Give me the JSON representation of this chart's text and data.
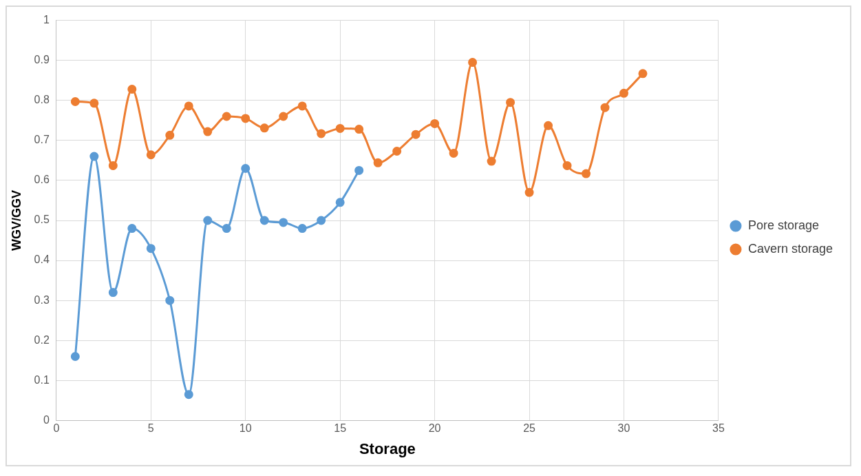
{
  "chart_data": {
    "type": "line",
    "xlabel": "Storage",
    "ylabel": "WGV/GGV",
    "xlim": [
      0,
      35
    ],
    "xticks": [
      0,
      5,
      10,
      15,
      20,
      25,
      30,
      35
    ],
    "ylim": [
      0,
      1
    ],
    "yticks": [
      0,
      0.1,
      0.2,
      0.3,
      0.4,
      0.5,
      0.6,
      0.7,
      0.8,
      0.9,
      1
    ],
    "grid": true,
    "legend": "right",
    "marker": "circle",
    "line_style": "solid",
    "series": [
      {
        "name": "Pore storage",
        "color": "#5b9bd5",
        "x": [
          1,
          2,
          3,
          4,
          5,
          6,
          7,
          8,
          9,
          10,
          11,
          12,
          13,
          14,
          15,
          16
        ],
        "values": [
          0.16,
          0.66,
          0.32,
          0.48,
          0.43,
          0.3,
          0.065,
          0.5,
          0.48,
          0.63,
          0.5,
          0.495,
          0.48,
          0.5,
          0.545,
          0.625
        ]
      },
      {
        "name": "Cavern storage",
        "color": "#ed7d31",
        "x": [
          1,
          2,
          3,
          4,
          5,
          6,
          7,
          8,
          9,
          10,
          11,
          12,
          13,
          14,
          15,
          16,
          17,
          18,
          19,
          20,
          21,
          22,
          23,
          24,
          25,
          26,
          27,
          28,
          29,
          30,
          31
        ],
        "values": [
          0.797,
          0.793,
          0.637,
          0.828,
          0.664,
          0.713,
          0.786,
          0.722,
          0.76,
          0.755,
          0.731,
          0.76,
          0.786,
          0.717,
          0.73,
          0.728,
          0.644,
          0.673,
          0.715,
          0.742,
          0.668,
          0.895,
          0.648,
          0.795,
          0.57,
          0.737,
          0.637,
          0.617,
          0.782,
          0.818,
          0.867
        ]
      }
    ]
  }
}
